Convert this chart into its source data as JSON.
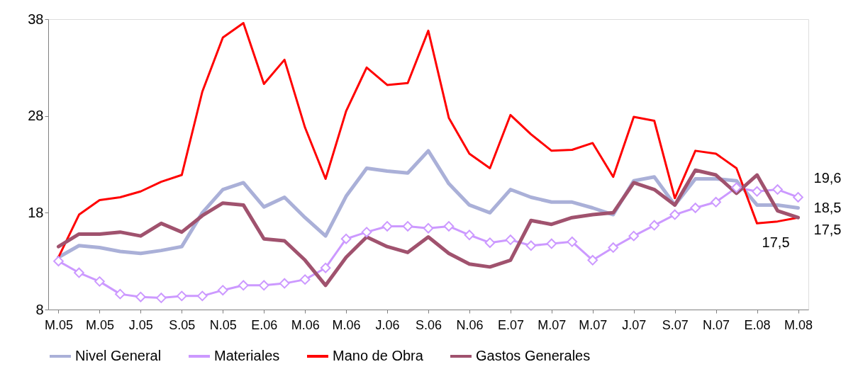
{
  "chart_data": {
    "type": "line",
    "categories": [
      "M.05",
      null,
      "M.05",
      null,
      "J.05",
      null,
      "S.05",
      null,
      "N.05",
      null,
      "E.06",
      null,
      "M.06",
      null,
      "M.06",
      null,
      "J.06",
      null,
      "S.06",
      null,
      "N.06",
      null,
      "E.07",
      null,
      "M.07",
      null,
      "M.07",
      null,
      "J.07",
      null,
      "S.07",
      null,
      "N.07",
      null,
      "E.08",
      null,
      "M.08"
    ],
    "series": [
      {
        "name": "Nivel General",
        "color": "#aab0d8",
        "marker": "none",
        "values": [
          13.4,
          14.6,
          14.4,
          14.0,
          13.8,
          14.1,
          14.5,
          18.0,
          20.4,
          21.1,
          18.6,
          19.6,
          17.5,
          15.6,
          19.7,
          22.6,
          22.3,
          22.1,
          24.4,
          21.0,
          18.8,
          18.0,
          20.4,
          19.6,
          19.1,
          19.1,
          18.5,
          17.8,
          21.3,
          21.7,
          18.8,
          21.5,
          21.5,
          21.3,
          18.8,
          18.8,
          18.5
        ],
        "value_labels": [
          null,
          null,
          null,
          null,
          null,
          null,
          null,
          null,
          null,
          null,
          null,
          null,
          null,
          null,
          null,
          null,
          null,
          null,
          null,
          null,
          null,
          null,
          null,
          null,
          null,
          null,
          null,
          null,
          null,
          null,
          null,
          null,
          null,
          null,
          null,
          null,
          "18,5"
        ]
      },
      {
        "name": "Materiales",
        "color": "#cc99ff",
        "marker": "diamond",
        "values": [
          13.0,
          11.8,
          10.9,
          9.6,
          9.3,
          9.2,
          9.4,
          9.4,
          10.0,
          10.5,
          10.5,
          10.7,
          11.1,
          12.3,
          15.3,
          16.0,
          16.6,
          16.6,
          16.4,
          16.6,
          15.7,
          14.9,
          15.2,
          14.6,
          14.8,
          15.0,
          13.1,
          14.4,
          15.6,
          16.7,
          17.8,
          18.5,
          19.1,
          20.6,
          20.2,
          20.4,
          19.6
        ],
        "value_labels": [
          null,
          null,
          null,
          null,
          null,
          null,
          null,
          null,
          null,
          null,
          null,
          null,
          null,
          null,
          null,
          null,
          null,
          null,
          null,
          null,
          null,
          null,
          null,
          null,
          null,
          null,
          null,
          null,
          null,
          null,
          null,
          null,
          null,
          null,
          null,
          null,
          "19,6"
        ]
      },
      {
        "name": "Mano de Obra",
        "color": "#ff0000",
        "marker": "none",
        "values": [
          13.4,
          17.8,
          19.3,
          19.6,
          20.2,
          21.2,
          21.9,
          30.5,
          36.1,
          37.6,
          31.3,
          33.8,
          26.8,
          21.5,
          28.5,
          33.0,
          31.2,
          31.4,
          36.8,
          27.8,
          24.1,
          22.6,
          28.1,
          26.1,
          24.4,
          24.5,
          25.2,
          21.7,
          27.9,
          27.5,
          19.5,
          24.4,
          24.1,
          22.6,
          16.9,
          17.1,
          17.5
        ],
        "value_labels": [
          null,
          null,
          null,
          null,
          null,
          null,
          null,
          null,
          null,
          null,
          null,
          null,
          null,
          null,
          null,
          null,
          null,
          null,
          null,
          null,
          null,
          null,
          null,
          null,
          null,
          null,
          null,
          null,
          null,
          null,
          null,
          null,
          null,
          null,
          null,
          null,
          "17,5"
        ]
      },
      {
        "name": "Gastos Generales",
        "color": "#a0526e",
        "marker": "none",
        "values": [
          14.5,
          15.8,
          15.8,
          16.0,
          15.6,
          16.9,
          16.0,
          17.7,
          19.0,
          18.8,
          15.3,
          15.1,
          13.1,
          10.5,
          13.4,
          15.5,
          14.5,
          13.9,
          15.5,
          13.8,
          12.7,
          12.4,
          13.1,
          17.2,
          16.8,
          17.5,
          17.8,
          18.0,
          21.1,
          20.4,
          18.8,
          22.4,
          21.9,
          20.0,
          21.9,
          18.2,
          17.5
        ],
        "value_labels": [
          null,
          null,
          null,
          null,
          null,
          null,
          null,
          null,
          null,
          null,
          null,
          null,
          null,
          null,
          null,
          null,
          null,
          null,
          null,
          null,
          null,
          null,
          null,
          null,
          null,
          null,
          null,
          null,
          null,
          null,
          null,
          null,
          null,
          null,
          null,
          null,
          "17,5"
        ]
      }
    ],
    "ylim": [
      8,
      38
    ],
    "yticks": [
      8,
      18,
      28,
      38
    ],
    "grid": false,
    "legend": "bottom"
  }
}
